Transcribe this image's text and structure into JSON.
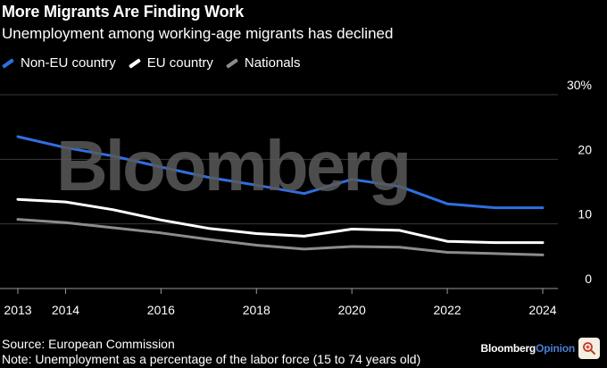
{
  "header": {
    "title": "More Migrants Are Finding Work",
    "subtitle": "Unemployment among working-age migrants has declined"
  },
  "watermark": "Bloomberg",
  "footer": {
    "source": "Source: European Commission",
    "note": "Note: Unemployment as a percentage of the labor force (15 to 74 years old)",
    "brand_main": "Bloomberg",
    "brand_accent": "Opinion"
  },
  "controls": {
    "zoom_icon": "zoom-in-icon"
  },
  "chart_data": {
    "type": "line",
    "title": "More Migrants Are Finding Work",
    "subtitle": "Unemployment among working-age migrants has declined",
    "x": [
      2013,
      2014,
      2015,
      2016,
      2017,
      2018,
      2019,
      2020,
      2021,
      2022,
      2023,
      2024
    ],
    "x_ticks": [
      "2013",
      "2014",
      "2016",
      "2018",
      "2020",
      "2022",
      "2024"
    ],
    "y_ticks": [
      "0",
      "10",
      "20",
      "30%"
    ],
    "ylim": [
      0,
      30
    ],
    "grid": true,
    "legend_position": "top-left",
    "series": [
      {
        "name": "Non-EU country",
        "color": "#2f6fe0",
        "values": [
          23.5,
          21.8,
          20.5,
          18.8,
          17.2,
          16.0,
          14.7,
          16.9,
          15.8,
          13.1,
          12.5,
          12.5
        ]
      },
      {
        "name": "EU country",
        "color": "#ffffff",
        "values": [
          13.8,
          13.4,
          12.2,
          10.6,
          9.3,
          8.5,
          8.1,
          9.2,
          9.0,
          7.3,
          7.1,
          7.1
        ]
      },
      {
        "name": "Nationals",
        "color": "#8c8c8c",
        "values": [
          10.7,
          10.2,
          9.4,
          8.6,
          7.6,
          6.7,
          6.1,
          6.5,
          6.4,
          5.6,
          5.4,
          5.2
        ]
      }
    ]
  }
}
